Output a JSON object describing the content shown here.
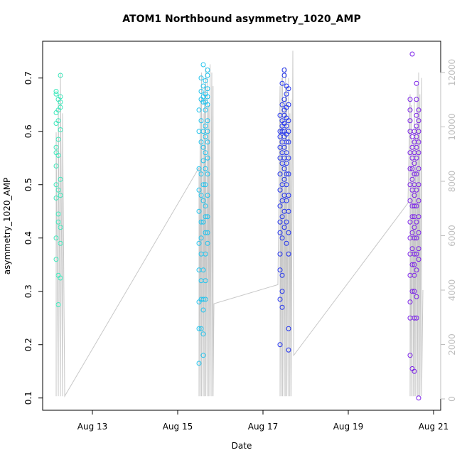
{
  "chart_data": {
    "type": "scatter",
    "title": "ATOM1 Northbound asymmetry_1020_AMP",
    "x_label": "Date",
    "y_label": "asymmetry_1020_AMP",
    "xlim": [
      11.833,
      21.167
    ],
    "ylim": [
      0.077,
      0.769
    ],
    "y2lim": [
      -418,
      13150
    ],
    "xticks": [
      {
        "value": 13,
        "label": "Aug 13"
      },
      {
        "value": 15,
        "label": "Aug 15"
      },
      {
        "value": 17,
        "label": "Aug 17"
      },
      {
        "value": 19,
        "label": "Aug 19"
      },
      {
        "value": 21,
        "label": "Aug 21"
      }
    ],
    "yticks": [
      0.1,
      0.2,
      0.3,
      0.4,
      0.5,
      0.6,
      0.7
    ],
    "y2ticks": [
      0,
      2000,
      4000,
      6000,
      8000,
      10000,
      12000
    ],
    "y2_color": "#bdbdbd",
    "series": [
      {
        "color": "#3de8bb",
        "x": [
          12.15,
          12.15,
          12.15,
          12.15,
          12.15,
          12.15,
          12.15,
          12.15,
          12.15,
          12.15,
          12.15,
          12.2,
          12.2,
          12.2,
          12.2,
          12.2,
          12.2,
          12.2,
          12.2,
          12.2,
          12.2,
          12.25,
          12.25,
          12.25,
          12.25,
          12.25,
          12.25,
          12.25,
          12.25,
          12.25,
          12.25
        ],
        "values": [
          0.675,
          0.67,
          0.635,
          0.615,
          0.57,
          0.56,
          0.535,
          0.5,
          0.475,
          0.4,
          0.36,
          0.66,
          0.64,
          0.62,
          0.585,
          0.555,
          0.49,
          0.445,
          0.43,
          0.33,
          0.275,
          0.705,
          0.665,
          0.655,
          0.645,
          0.603,
          0.51,
          0.48,
          0.42,
          0.39,
          0.325
        ]
      },
      {
        "color": "#22c4ee",
        "x": [
          15.5,
          15.5,
          15.5,
          15.5,
          15.5,
          15.5,
          15.5,
          15.5,
          15.5,
          15.5,
          15.55,
          15.55,
          15.55,
          15.55,
          15.55,
          15.55,
          15.55,
          15.55,
          15.55,
          15.55,
          15.55,
          15.55,
          15.55,
          15.6,
          15.6,
          15.6,
          15.6,
          15.6,
          15.6,
          15.6,
          15.6,
          15.6,
          15.6,
          15.6,
          15.6,
          15.6,
          15.6,
          15.6,
          15.65,
          15.65,
          15.65,
          15.65,
          15.65,
          15.65,
          15.65,
          15.65,
          15.65,
          15.65,
          15.65,
          15.65,
          15.65,
          15.65,
          15.65,
          15.7,
          15.7,
          15.7,
          15.7,
          15.7,
          15.7,
          15.7,
          15.7,
          15.7,
          15.7,
          15.7,
          15.7,
          15.7,
          15.7
        ],
        "values": [
          0.64,
          0.6,
          0.53,
          0.49,
          0.45,
          0.39,
          0.34,
          0.28,
          0.23,
          0.165,
          0.7,
          0.675,
          0.66,
          0.62,
          0.58,
          0.52,
          0.48,
          0.43,
          0.4,
          0.37,
          0.32,
          0.285,
          0.23,
          0.725,
          0.685,
          0.665,
          0.655,
          0.6,
          0.57,
          0.545,
          0.5,
          0.47,
          0.43,
          0.34,
          0.285,
          0.265,
          0.22,
          0.18,
          0.695,
          0.67,
          0.655,
          0.64,
          0.61,
          0.59,
          0.56,
          0.53,
          0.5,
          0.46,
          0.44,
          0.41,
          0.37,
          0.32,
          0.285,
          0.715,
          0.705,
          0.68,
          0.665,
          0.65,
          0.62,
          0.6,
          0.58,
          0.55,
          0.52,
          0.48,
          0.44,
          0.41,
          0.39
        ]
      },
      {
        "color": "#2233ee",
        "x": [
          17.4,
          17.4,
          17.4,
          17.4,
          17.4,
          17.4,
          17.4,
          17.4,
          17.4,
          17.4,
          17.4,
          17.4,
          17.4,
          17.4,
          17.45,
          17.45,
          17.45,
          17.45,
          17.45,
          17.45,
          17.45,
          17.45,
          17.45,
          17.45,
          17.45,
          17.45,
          17.45,
          17.45,
          17.45,
          17.5,
          17.5,
          17.5,
          17.5,
          17.5,
          17.5,
          17.5,
          17.5,
          17.5,
          17.5,
          17.5,
          17.5,
          17.5,
          17.5,
          17.5,
          17.55,
          17.55,
          17.55,
          17.55,
          17.55,
          17.55,
          17.55,
          17.55,
          17.55,
          17.55,
          17.55,
          17.55,
          17.55,
          17.55,
          17.6,
          17.6,
          17.6,
          17.6,
          17.6,
          17.6,
          17.6,
          17.6,
          17.6,
          17.6,
          17.6,
          17.6,
          17.6
        ],
        "values": [
          0.63,
          0.6,
          0.59,
          0.57,
          0.55,
          0.52,
          0.49,
          0.46,
          0.43,
          0.41,
          0.37,
          0.34,
          0.285,
          0.2,
          0.69,
          0.65,
          0.62,
          0.61,
          0.6,
          0.58,
          0.56,
          0.54,
          0.5,
          0.47,
          0.44,
          0.4,
          0.33,
          0.3,
          0.27,
          0.715,
          0.705,
          0.66,
          0.64,
          0.63,
          0.615,
          0.6,
          0.59,
          0.57,
          0.55,
          0.53,
          0.51,
          0.48,
          0.45,
          0.42,
          0.685,
          0.67,
          0.645,
          0.625,
          0.61,
          0.595,
          0.58,
          0.56,
          0.54,
          0.52,
          0.5,
          0.47,
          0.43,
          0.39,
          0.68,
          0.65,
          0.62,
          0.6,
          0.58,
          0.55,
          0.52,
          0.48,
          0.45,
          0.41,
          0.37,
          0.23,
          0.19
        ]
      },
      {
        "color": "#7a1fe8",
        "x": [
          20.45,
          20.45,
          20.45,
          20.45,
          20.45,
          20.45,
          20.45,
          20.45,
          20.45,
          20.45,
          20.45,
          20.45,
          20.45,
          20.45,
          20.45,
          20.5,
          20.5,
          20.5,
          20.5,
          20.5,
          20.5,
          20.5,
          20.5,
          20.5,
          20.5,
          20.5,
          20.5,
          20.5,
          20.5,
          20.55,
          20.55,
          20.55,
          20.55,
          20.55,
          20.55,
          20.55,
          20.55,
          20.55,
          20.55,
          20.55,
          20.55,
          20.55,
          20.55,
          20.55,
          20.55,
          20.55,
          20.6,
          20.6,
          20.6,
          20.6,
          20.6,
          20.6,
          20.6,
          20.6,
          20.6,
          20.6,
          20.6,
          20.6,
          20.6,
          20.6,
          20.6,
          20.6,
          20.65,
          20.65,
          20.65,
          20.65,
          20.65,
          20.65,
          20.65,
          20.65,
          20.65,
          20.65,
          20.65,
          20.65,
          20.65
        ],
        "values": [
          0.66,
          0.64,
          0.62,
          0.6,
          0.56,
          0.53,
          0.5,
          0.47,
          0.43,
          0.4,
          0.37,
          0.33,
          0.28,
          0.25,
          0.18,
          0.745,
          0.59,
          0.57,
          0.55,
          0.53,
          0.51,
          0.49,
          0.46,
          0.44,
          0.41,
          0.38,
          0.35,
          0.3,
          0.155,
          0.6,
          0.58,
          0.56,
          0.54,
          0.52,
          0.5,
          0.48,
          0.46,
          0.44,
          0.42,
          0.4,
          0.37,
          0.35,
          0.33,
          0.3,
          0.25,
          0.15,
          0.69,
          0.66,
          0.63,
          0.61,
          0.59,
          0.57,
          0.55,
          0.52,
          0.49,
          0.46,
          0.43,
          0.4,
          0.37,
          0.34,
          0.29,
          0.25,
          0.64,
          0.62,
          0.6,
          0.58,
          0.56,
          0.53,
          0.5,
          0.47,
          0.44,
          0.41,
          0.38,
          0.36,
          0.1
        ]
      },
      {
        "type": "line",
        "axis": "y2",
        "color": "#c8c8c8",
        "x": [
          12.15,
          12.15,
          12.2,
          12.2,
          12.25,
          12.25,
          12.3,
          12.3,
          12.35,
          15.5,
          15.5,
          15.53,
          15.53,
          15.56,
          15.56,
          15.6,
          15.6,
          15.63,
          15.63,
          15.66,
          15.66,
          15.7,
          15.7,
          15.73,
          15.73,
          15.76,
          15.76,
          15.8,
          15.8,
          15.83,
          15.83,
          15.85,
          17.35,
          17.4,
          17.4,
          17.43,
          17.43,
          17.46,
          17.46,
          17.5,
          17.5,
          17.53,
          17.53,
          17.56,
          17.56,
          17.6,
          17.6,
          17.63,
          17.63,
          17.66,
          17.66,
          17.7,
          17.72,
          20.4,
          20.45,
          20.45,
          20.48,
          20.48,
          20.52,
          20.52,
          20.55,
          20.55,
          20.58,
          20.58,
          20.62,
          20.62,
          20.65,
          20.65,
          20.68,
          20.68,
          20.72,
          20.72,
          20.75
        ],
        "values": [
          100,
          9800,
          100,
          11000,
          100,
          12000,
          100,
          10500,
          100,
          8500,
          100,
          11000,
          100,
          12000,
          100,
          10500,
          100,
          11500,
          100,
          12200,
          100,
          11800,
          100,
          10800,
          100,
          12300,
          100,
          12000,
          100,
          11500,
          100,
          3500,
          4200,
          11500,
          100,
          11800,
          100,
          12000,
          100,
          11000,
          100,
          12200,
          100,
          11500,
          100,
          11800,
          100,
          10500,
          100,
          11000,
          100,
          12800,
          1600,
          7200,
          11200,
          100,
          10800,
          100,
          9500,
          100,
          11000,
          100,
          10000,
          100,
          11500,
          100,
          12000,
          100,
          11200,
          100,
          11800,
          100,
          4000
        ]
      }
    ]
  }
}
